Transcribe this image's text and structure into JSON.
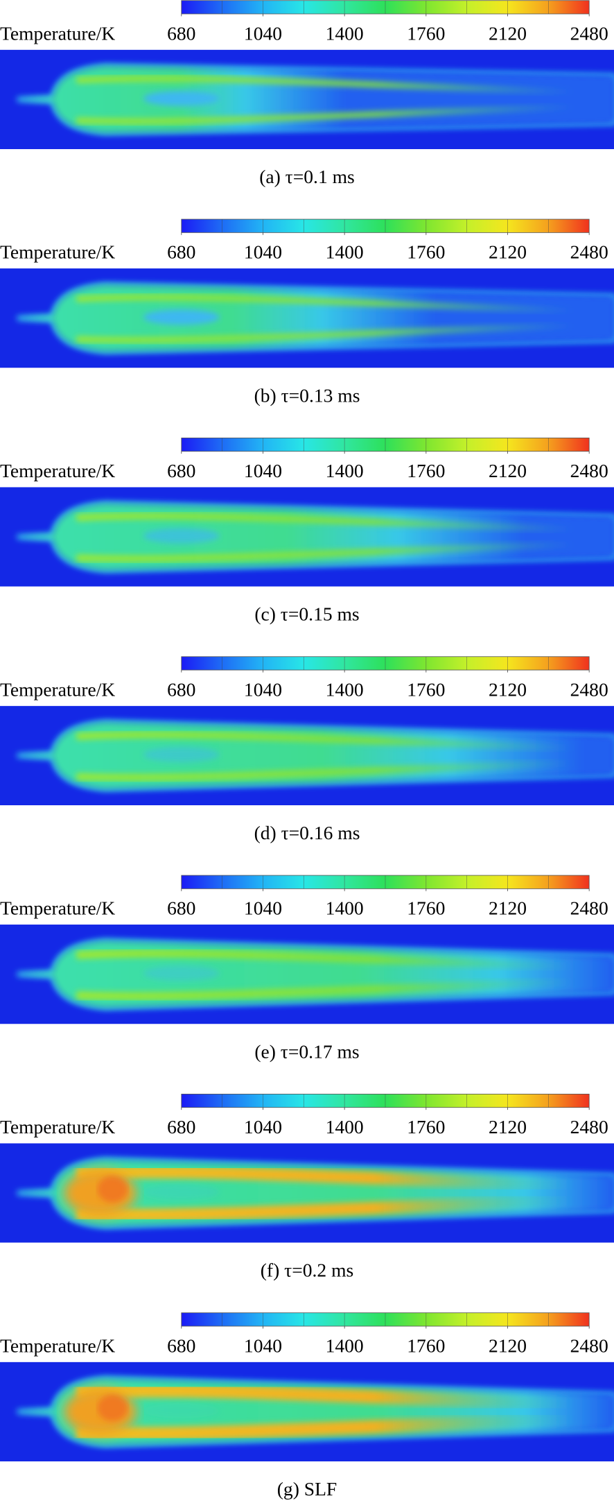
{
  "chart_data": [
    {
      "type": "contour",
      "colorbar_label": "Temperature/K",
      "clim": [
        680,
        2480
      ],
      "cticks": [
        680,
        1040,
        1400,
        1760,
        2120,
        2480
      ],
      "caption": "(a) τ=0.1 ms"
    },
    {
      "type": "contour",
      "colorbar_label": "Temperature/K",
      "clim": [
        680,
        2480
      ],
      "cticks": [
        680,
        1040,
        1400,
        1760,
        2120,
        2480
      ],
      "caption": "(b) τ=0.13 ms"
    },
    {
      "type": "contour",
      "colorbar_label": "Temperature/K",
      "clim": [
        680,
        2480
      ],
      "cticks": [
        680,
        1040,
        1400,
        1760,
        2120,
        2480
      ],
      "caption": "(c) τ=0.15 ms"
    },
    {
      "type": "contour",
      "colorbar_label": "Temperature/K",
      "clim": [
        680,
        2480
      ],
      "cticks": [
        680,
        1040,
        1400,
        1760,
        2120,
        2480
      ],
      "caption": "(d) τ=0.16 ms"
    },
    {
      "type": "contour",
      "colorbar_label": "Temperature/K",
      "clim": [
        680,
        2480
      ],
      "cticks": [
        680,
        1040,
        1400,
        1760,
        2120,
        2480
      ],
      "caption": "(e) τ=0.17 ms"
    },
    {
      "type": "contour",
      "colorbar_label": "Temperature/K",
      "clim": [
        680,
        2480
      ],
      "cticks": [
        680,
        1040,
        1400,
        1760,
        2120,
        2480
      ],
      "caption": "(f) τ=0.2 ms"
    },
    {
      "type": "contour",
      "colorbar_label": "Temperature/K",
      "clim": [
        680,
        2480
      ],
      "cticks": [
        680,
        1040,
        1400,
        1760,
        2120,
        2480
      ],
      "caption": "(g) SLF"
    }
  ]
}
